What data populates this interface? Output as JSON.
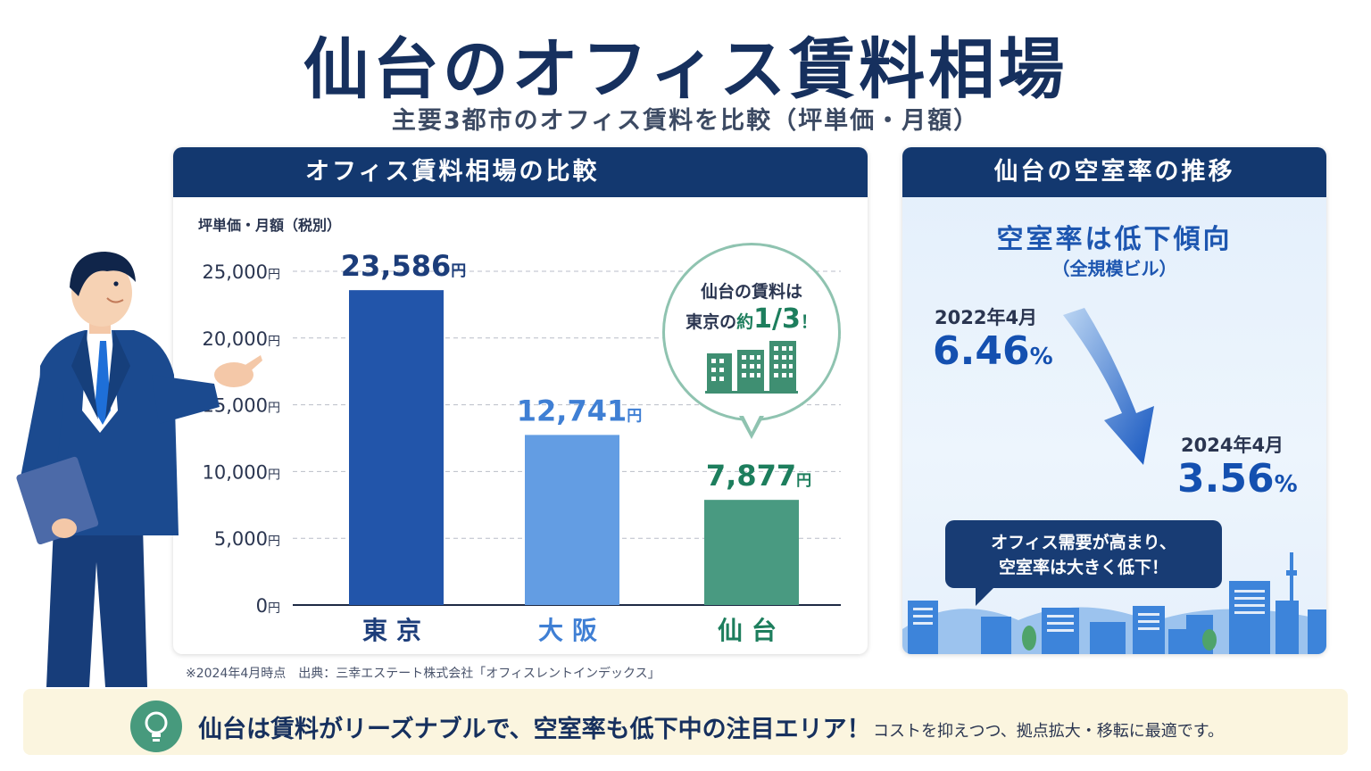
{
  "title": "仙台のオフィス賃料相場",
  "subtitle": "主要3都市のオフィス賃料を比較（坪単価・月額）",
  "left_panel": {
    "header": "オフィス賃料相場の比較",
    "unit_label": "坪単価・月額（税別）",
    "bubble_line1": "仙台の賃料は",
    "bubble_line2_pre": "東京の",
    "bubble_line2_em": "約",
    "bubble_line2_big": "1/3",
    "bubble_line2_end": "！",
    "building_icon": "buildings-icon"
  },
  "chart_data": {
    "type": "bar",
    "categories": [
      "東京",
      "大阪",
      "仙台"
    ],
    "values": [
      23586,
      12741,
      7877
    ],
    "value_labels": [
      "23,586",
      "12,741",
      "7,877"
    ],
    "value_unit": "円",
    "ylim": [
      0,
      25000
    ],
    "yticks": [
      0,
      5000,
      10000,
      15000,
      20000,
      25000
    ],
    "ytick_labels": [
      "0",
      "5,000",
      "10,000",
      "15,000",
      "20,000",
      "25,000"
    ],
    "tick_unit": "円",
    "grid": true,
    "bar_colors": [
      "#2255aa",
      "#639de3",
      "#499a81"
    ],
    "label_colors": [
      "#1c3d7a",
      "#3f7fd4",
      "#1d7e5d"
    ]
  },
  "source": "※2024年4月時点　出典：三幸エステート株式会社「オフィスレントインデックス」",
  "right_panel": {
    "header": "仙台の空室率の推移",
    "trend_title": "空室率は低下傾向",
    "trend_sub": "（全規模ビル）",
    "point1": {
      "label": "2022年4月",
      "value": "6.46",
      "unit": "%"
    },
    "point2": {
      "label": "2024年4月",
      "value": "3.56",
      "unit": "%"
    },
    "note_line1": "オフィス需要が高まり、",
    "note_line2": "空室率は大きく低下！"
  },
  "banner": {
    "icon": "lightbulb-icon",
    "main": "仙台は賃料がリーズナブルで、空室率も低下中の注目エリア！",
    "sub": "コストを抑えつつ、拠点拡大・移転に最適です。"
  },
  "colors": {
    "navy": "#13386f",
    "accent_blue": "#1450b0",
    "green": "#1d7e5d",
    "banner_bg": "#fbf5df"
  }
}
